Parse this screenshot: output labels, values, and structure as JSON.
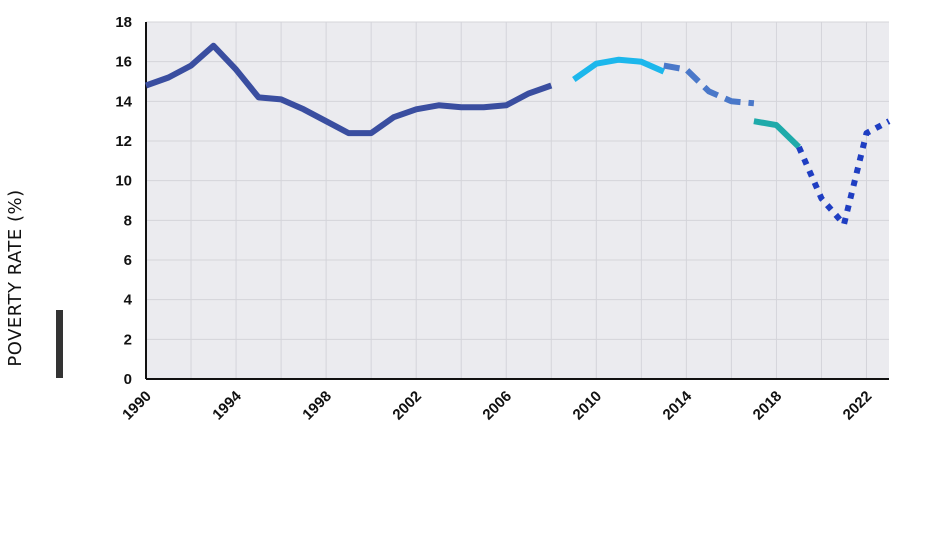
{
  "chart_data": {
    "type": "line",
    "title": "",
    "xlabel": "",
    "ylabel": "POVERTY RATE (%)",
    "xlim": [
      1990,
      2023
    ],
    "ylim": [
      0,
      18
    ],
    "yticks": [
      0,
      2,
      4,
      6,
      8,
      10,
      12,
      14,
      16,
      18
    ],
    "xticks": [
      1990,
      1994,
      1998,
      2002,
      2006,
      2010,
      2014,
      2018,
      2022
    ],
    "grid": true,
    "legend": "none",
    "colors": {
      "plot_background": "#ebebef",
      "grid": "#d4d4da",
      "axis": "#111111"
    },
    "series": [
      {
        "color": "#3a4ea0",
        "style": "solid",
        "x": [
          1990,
          1991,
          1992,
          1993,
          1994,
          1995,
          1996,
          1997,
          1998,
          1999,
          2000,
          2001,
          2002,
          2003,
          2004,
          2005,
          2006,
          2007,
          2008
        ],
        "y": [
          14.8,
          15.2,
          15.8,
          16.8,
          15.6,
          14.2,
          14.1,
          13.6,
          13.0,
          12.4,
          12.4,
          13.2,
          13.6,
          13.8,
          13.7,
          13.7,
          13.8,
          14.4,
          14.8
        ]
      },
      {
        "color": "#1cb7ec",
        "style": "solid",
        "x": [
          2009,
          2010,
          2011,
          2012,
          2013
        ],
        "y": [
          15.1,
          15.9,
          16.1,
          16.0,
          15.5
        ]
      },
      {
        "color": "#4a78c9",
        "style": "dashed",
        "x": [
          2013,
          2014,
          2015,
          2016,
          2017
        ],
        "y": [
          15.8,
          15.6,
          14.5,
          14.0,
          13.9
        ]
      },
      {
        "color": "#1eaaaa",
        "style": "solid",
        "x": [
          2017,
          2018,
          2019
        ],
        "y": [
          13.0,
          12.8,
          11.7
        ]
      },
      {
        "color": "#1f3ec2",
        "style": "dotted",
        "x": [
          2019,
          2020,
          2021,
          2022,
          2023
        ],
        "y": [
          11.7,
          9.1,
          7.8,
          12.4,
          13.0
        ]
      }
    ]
  }
}
